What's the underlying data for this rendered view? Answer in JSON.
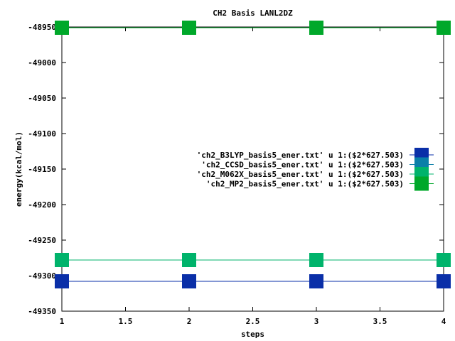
{
  "chart_data": {
    "type": "line",
    "title": "CH2 Basis LANL2DZ",
    "xlabel": "steps",
    "ylabel": "energy(kcal/mol)",
    "xlim": [
      1,
      4
    ],
    "ylim": [
      -49350,
      -48950
    ],
    "xticks": [
      1,
      1.5,
      2,
      2.5,
      3,
      3.5,
      4
    ],
    "xtick_labels": [
      "1",
      "1.5",
      "2",
      "2.5",
      "3",
      "3.5",
      "4"
    ],
    "yticks": [
      -48950,
      -49000,
      -49050,
      -49100,
      -49150,
      -49200,
      -49250,
      -49300,
      -49350
    ],
    "ytick_labels": [
      "-48950",
      "-49000",
      "-49050",
      "-49100",
      "-49150",
      "-49200",
      "-49250",
      "-49300",
      "-49350"
    ],
    "grid": false,
    "legend_position": "right",
    "series": [
      {
        "name": "'ch2_B3LYP_basis5_ener.txt' u 1:($2*627.503)",
        "color": "#0a2fa8",
        "x": [
          1,
          2,
          3,
          4
        ],
        "y": [
          -49308,
          -49308,
          -49308,
          -49308
        ]
      },
      {
        "name": "'ch2_CCSD_basis5_ener.txt' u 1:($2*627.503)",
        "color": "#0a7fa8",
        "x": [
          1,
          2,
          3,
          4
        ],
        "y": [
          -48951,
          -48951,
          -48951,
          -48951
        ]
      },
      {
        "name": "'ch2_M062X_basis5_ener.txt' u 1:($2*627.503)",
        "color": "#00b36b",
        "x": [
          1,
          2,
          3,
          4
        ],
        "y": [
          -49278,
          -49278,
          -49278,
          -49278
        ]
      },
      {
        "name": "'ch2_MP2_basis5_ener.txt' u 1:($2*627.503)",
        "color": "#00a82a",
        "x": [
          1,
          2,
          3,
          4
        ],
        "y": [
          -48951,
          -48951,
          -48951,
          -48951
        ]
      }
    ]
  }
}
